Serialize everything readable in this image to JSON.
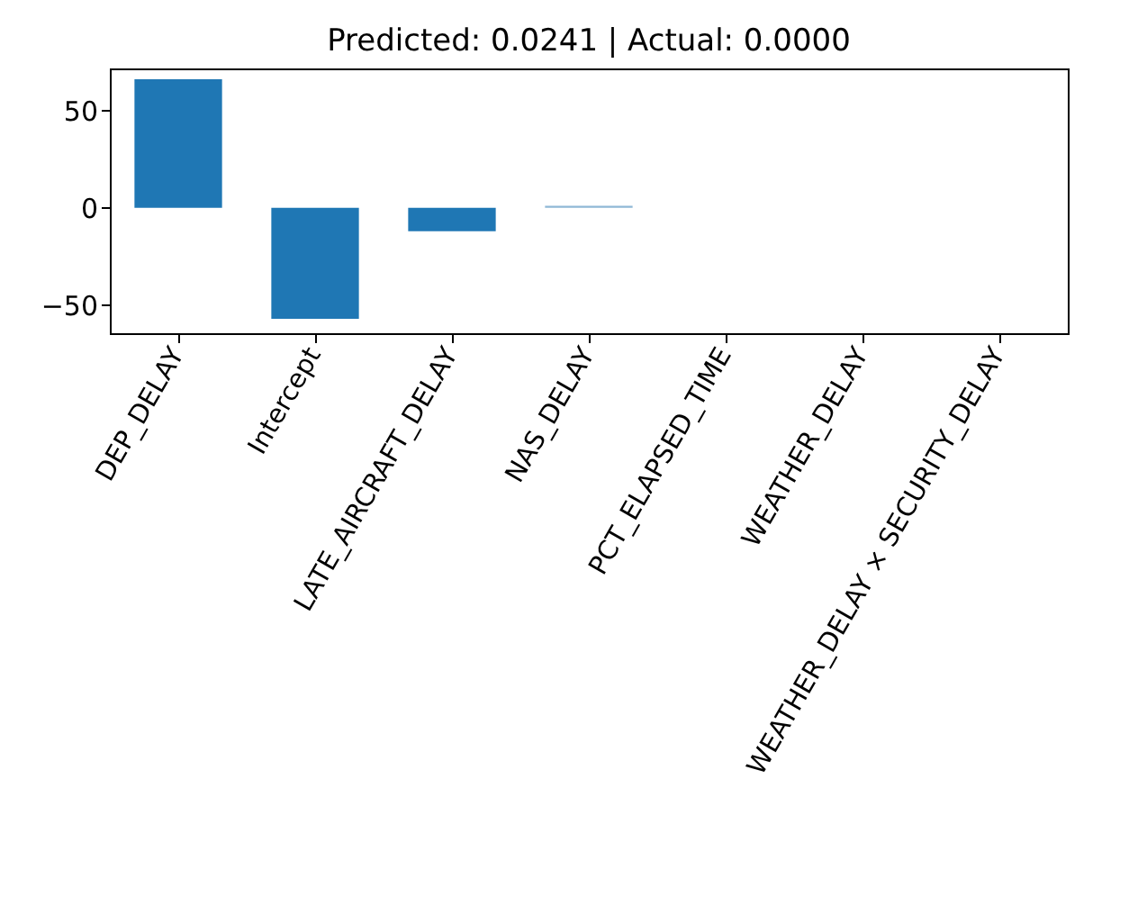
{
  "chart_data": {
    "type": "bar",
    "title": "Predicted: 0.0241 | Actual: 0.0000",
    "categories": [
      "DEP_DELAY",
      "Intercept",
      "LATE_AIRCRAFT_DELAY",
      "NAS_DELAY",
      "PCT_ELAPSED_TIME",
      "WEATHER_DELAY",
      "WEATHER_DELAY × SECURITY_DELAY"
    ],
    "values": [
      66,
      -57,
      -12,
      1,
      0,
      0,
      0
    ],
    "colors": [
      "#1f77b4",
      "#1f77b4",
      "#1f77b4",
      "#8fb8d6",
      "#dde6ec",
      "#dde6ec",
      "#eef2f5"
    ],
    "ylim": [
      -64.4,
      71.5
    ],
    "yticks": [
      -50,
      0,
      50
    ],
    "grid": false
  }
}
